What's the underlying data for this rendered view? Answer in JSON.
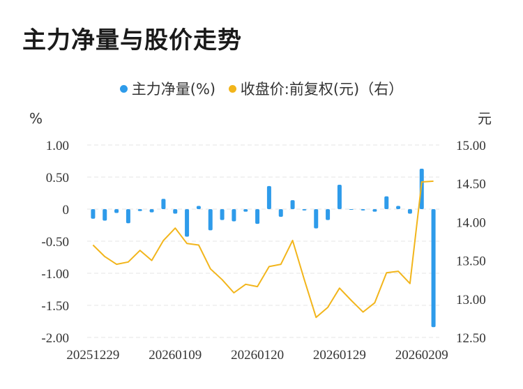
{
  "title": "主力净量与股价走势",
  "colors": {
    "bar": "#2e9bea",
    "line": "#f2b51b",
    "grid": "#e6e6e6"
  },
  "legend": {
    "bar_label": "主力净量(%)",
    "line_label": "收盘价:前复权(元)（右）"
  },
  "chart_data": {
    "type": "bar+line",
    "left_unit": "%",
    "right_unit": "元",
    "left_ylim": [
      -2.0,
      1.0
    ],
    "right_ylim": [
      12.5,
      15.0
    ],
    "left_ticks": [
      "1.00",
      "0.50",
      "0",
      "-0.50",
      "-1.00",
      "-1.50",
      "-2.00"
    ],
    "right_ticks": [
      "15.00",
      "14.50",
      "14.00",
      "13.50",
      "13.00",
      "12.50"
    ],
    "x_tick_labels": [
      "20251229",
      "20260109",
      "20260120",
      "20260129",
      "20260209"
    ],
    "x_tick_index": [
      0,
      7,
      14,
      21,
      28
    ],
    "grid": true,
    "series": [
      {
        "name": "主力净量(%)",
        "type": "bar",
        "axis": "left",
        "values": [
          -0.15,
          -0.18,
          -0.06,
          -0.22,
          -0.03,
          -0.05,
          0.16,
          -0.07,
          -0.43,
          0.05,
          -0.33,
          -0.17,
          -0.19,
          -0.04,
          -0.23,
          0.36,
          -0.12,
          0.14,
          -0.02,
          -0.3,
          -0.17,
          0.38,
          -0.01,
          -0.02,
          -0.04,
          0.2,
          0.05,
          -0.07,
          0.63,
          -1.84
        ]
      },
      {
        "name": "收盘价:前复权(元)（右）",
        "type": "line",
        "axis": "right",
        "values": [
          13.7,
          13.55,
          13.45,
          13.48,
          13.63,
          13.5,
          13.76,
          13.92,
          13.72,
          13.7,
          13.39,
          13.25,
          13.08,
          13.19,
          13.16,
          13.42,
          13.45,
          13.76,
          13.25,
          12.76,
          12.89,
          13.14,
          12.98,
          12.83,
          12.95,
          13.34,
          13.36,
          13.2,
          14.52,
          14.53
        ]
      }
    ]
  }
}
